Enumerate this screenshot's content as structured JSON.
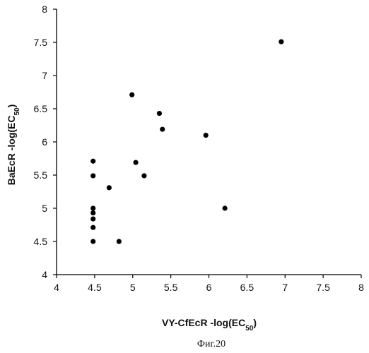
{
  "chart_data": {
    "type": "scatter",
    "xlabel": "VY-CfEcR -log(EC50)",
    "ylabel": "BaEcR -log(EC50)",
    "xlim": [
      4,
      8
    ],
    "ylim": [
      4,
      8
    ],
    "xticks": [
      "4",
      "4.5",
      "5",
      "5.5",
      "6",
      "6.5",
      "7",
      "7.5",
      "8"
    ],
    "yticks": [
      "4",
      "4.5",
      "5",
      "5.5",
      "6",
      "6.5",
      "7",
      "7.5",
      "8"
    ],
    "grid": false,
    "legend": "none",
    "points": [
      {
        "x": 4.48,
        "y": 5.71
      },
      {
        "x": 4.48,
        "y": 5.49
      },
      {
        "x": 4.48,
        "y": 5.0
      },
      {
        "x": 4.48,
        "y": 4.93
      },
      {
        "x": 4.48,
        "y": 4.84
      },
      {
        "x": 4.48,
        "y": 4.71
      },
      {
        "x": 4.48,
        "y": 4.5
      },
      {
        "x": 4.69,
        "y": 5.31
      },
      {
        "x": 4.82,
        "y": 4.5
      },
      {
        "x": 4.99,
        "y": 6.71
      },
      {
        "x": 5.04,
        "y": 5.69
      },
      {
        "x": 5.15,
        "y": 5.49
      },
      {
        "x": 5.35,
        "y": 6.43
      },
      {
        "x": 5.39,
        "y": 6.19
      },
      {
        "x": 5.96,
        "y": 6.1
      },
      {
        "x": 6.21,
        "y": 5.0
      },
      {
        "x": 6.95,
        "y": 7.51
      }
    ],
    "colors": {
      "point": "#000000",
      "axis": "#000000"
    }
  },
  "axis_titles": {
    "y_main": "BaEcR  -log(EC",
    "y_sub": "50",
    "y_close": ")",
    "x_main": "VY-CfEcR  -log(EC",
    "x_sub": "50",
    "x_close": ")"
  },
  "caption": "Фиг.20"
}
